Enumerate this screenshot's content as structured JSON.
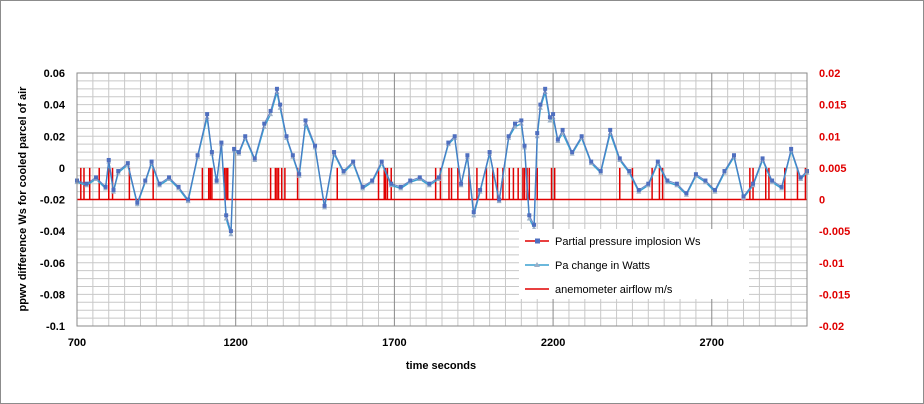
{
  "chart_data": {
    "type": "line",
    "xlabel": "time seconds",
    "ylabel": "ppwv difference Ws for cooled  parcel of air",
    "xlim": [
      700,
      3000
    ],
    "ylim": [
      -0.1,
      0.06
    ],
    "y2lim": [
      -0.02,
      0.02
    ],
    "x_ticks": [
      700,
      1200,
      1700,
      2200,
      2700
    ],
    "x_tick_labels": [
      "700",
      "1200",
      "1700",
      "2200",
      "2700"
    ],
    "y_ticks": [
      -0.1,
      -0.08,
      -0.06,
      -0.04,
      -0.02,
      0,
      0.02,
      0.04,
      0.06
    ],
    "y_tick_labels": [
      "-0.1",
      "-0.08",
      "-0.06",
      "-0.04",
      "-0.02",
      "0",
      "0.02",
      "0.04",
      "0.06"
    ],
    "y2_ticks": [
      -0.02,
      -0.015,
      -0.01,
      -0.005,
      0,
      0.005,
      0.01,
      0.015,
      0.02
    ],
    "y2_tick_labels": [
      "-0.02",
      "-0.015",
      "-0.01",
      "-0.005",
      "0",
      "0.005",
      "0.01",
      "0.015",
      "0.02"
    ],
    "grid": true,
    "legend_position": "right",
    "colors": {
      "series1": "#4f6fbf",
      "series1_marker": "#4f6fbf",
      "series2": "#3aa0d0",
      "series2_marker": "#9bb0c8",
      "series3": "#e00000",
      "right_axis_text": "#e00000",
      "grid": "#c8c8c8"
    },
    "series": [
      {
        "name": "Partial pressure implosion Ws",
        "axis": "left",
        "x": [
          700,
          730,
          760,
          790,
          800,
          815,
          830,
          860,
          890,
          915,
          935,
          960,
          990,
          1020,
          1050,
          1080,
          1110,
          1125,
          1140,
          1155,
          1170,
          1185,
          1195,
          1210,
          1230,
          1260,
          1290,
          1310,
          1330,
          1340,
          1360,
          1380,
          1400,
          1420,
          1450,
          1480,
          1510,
          1540,
          1570,
          1600,
          1630,
          1660,
          1690,
          1720,
          1750,
          1780,
          1810,
          1840,
          1870,
          1890,
          1910,
          1930,
          1950,
          1970,
          2000,
          2030,
          2060,
          2080,
          2100,
          2110,
          2125,
          2140,
          2150,
          2160,
          2175,
          2190,
          2200,
          2215,
          2230,
          2260,
          2290,
          2320,
          2350,
          2380,
          2410,
          2440,
          2470,
          2500,
          2530,
          2560,
          2590,
          2620,
          2650,
          2680,
          2710,
          2740,
          2770,
          2800,
          2830,
          2860,
          2890,
          2920,
          2950,
          2980,
          3000
        ],
        "values": [
          -0.008,
          -0.01,
          -0.006,
          -0.012,
          0.005,
          -0.014,
          -0.002,
          0.003,
          -0.022,
          -0.008,
          0.004,
          -0.01,
          -0.006,
          -0.012,
          -0.02,
          0.008,
          0.034,
          0.01,
          -0.008,
          0.016,
          -0.03,
          -0.04,
          0.012,
          0.01,
          0.02,
          0.006,
          0.028,
          0.036,
          0.05,
          0.04,
          0.02,
          0.008,
          -0.004,
          0.03,
          0.014,
          -0.024,
          0.01,
          -0.002,
          0.004,
          -0.012,
          -0.008,
          0.004,
          -0.01,
          -0.012,
          -0.008,
          -0.006,
          -0.01,
          -0.006,
          0.016,
          0.02,
          -0.01,
          0.008,
          -0.028,
          -0.014,
          0.01,
          -0.02,
          0.02,
          0.028,
          0.03,
          0.014,
          -0.03,
          -0.036,
          0.022,
          0.04,
          0.05,
          0.032,
          0.034,
          0.018,
          0.024,
          0.01,
          0.02,
          0.004,
          -0.002,
          0.024,
          0.006,
          -0.002,
          -0.014,
          -0.01,
          0.004,
          -0.008,
          -0.01,
          -0.016,
          -0.004,
          -0.008,
          -0.014,
          -0.002,
          0.008,
          -0.018,
          -0.01,
          0.006,
          -0.008,
          -0.012,
          0.012,
          -0.006,
          -0.002
        ]
      },
      {
        "name": "Pa change in Watts",
        "axis": "left",
        "x": [
          700,
          730,
          760,
          790,
          800,
          815,
          830,
          860,
          890,
          915,
          935,
          960,
          990,
          1020,
          1050,
          1080,
          1110,
          1125,
          1140,
          1155,
          1170,
          1185,
          1195,
          1210,
          1230,
          1260,
          1290,
          1310,
          1330,
          1340,
          1360,
          1380,
          1400,
          1420,
          1450,
          1480,
          1510,
          1540,
          1570,
          1600,
          1630,
          1660,
          1690,
          1720,
          1750,
          1780,
          1810,
          1840,
          1870,
          1890,
          1910,
          1930,
          1950,
          1970,
          2000,
          2030,
          2060,
          2080,
          2100,
          2110,
          2125,
          2140,
          2150,
          2160,
          2175,
          2190,
          2200,
          2215,
          2230,
          2260,
          2290,
          2320,
          2350,
          2380,
          2410,
          2440,
          2470,
          2500,
          2530,
          2560,
          2590,
          2620,
          2650,
          2680,
          2710,
          2740,
          2770,
          2800,
          2830,
          2860,
          2890,
          2920,
          2950,
          2980,
          3000
        ],
        "values": [
          -0.009,
          -0.011,
          -0.007,
          -0.013,
          0.004,
          -0.015,
          -0.003,
          0.002,
          -0.023,
          -0.009,
          0.003,
          -0.011,
          -0.007,
          -0.013,
          -0.021,
          0.007,
          0.032,
          0.009,
          -0.009,
          0.015,
          -0.032,
          -0.042,
          0.011,
          0.009,
          0.019,
          0.005,
          0.026,
          0.034,
          0.048,
          0.038,
          0.019,
          0.007,
          -0.005,
          0.028,
          0.013,
          -0.025,
          0.009,
          -0.003,
          0.003,
          -0.013,
          -0.009,
          0.003,
          -0.011,
          -0.013,
          -0.009,
          -0.007,
          -0.011,
          -0.007,
          0.015,
          0.019,
          -0.011,
          0.007,
          -0.03,
          -0.015,
          0.009,
          -0.021,
          0.019,
          0.026,
          0.028,
          0.013,
          -0.032,
          -0.038,
          0.02,
          0.038,
          0.048,
          0.03,
          0.032,
          0.017,
          0.022,
          0.009,
          0.019,
          0.003,
          -0.003,
          0.022,
          0.005,
          -0.003,
          -0.015,
          -0.011,
          0.003,
          -0.009,
          -0.011,
          -0.017,
          -0.005,
          -0.009,
          -0.015,
          -0.003,
          0.007,
          -0.019,
          -0.011,
          0.005,
          -0.009,
          -0.013,
          0.011,
          -0.007,
          -0.003
        ]
      },
      {
        "name": "anemometer airflow m/s",
        "axis": "right",
        "type": "step",
        "baseline": 0,
        "pulse_value": 0.005,
        "pulses": [
          712,
          722,
          740,
          770,
          800,
          812,
          865,
          940,
          1095,
          1115,
          1120,
          1125,
          1165,
          1170,
          1175,
          1310,
          1325,
          1330,
          1335,
          1345,
          1355,
          1395,
          1520,
          1650,
          1668,
          1672,
          1678,
          1690,
          1830,
          1845,
          1872,
          1880,
          1900,
          1935,
          1960,
          1990,
          2010,
          2025,
          2042,
          2062,
          2075,
          2090,
          2105,
          2110,
          2118,
          2125,
          2150,
          2195,
          2205,
          2410,
          2450,
          2512,
          2535,
          2545,
          2820,
          2830,
          2870,
          2880,
          2930,
          2970,
          2995
        ]
      }
    ]
  }
}
